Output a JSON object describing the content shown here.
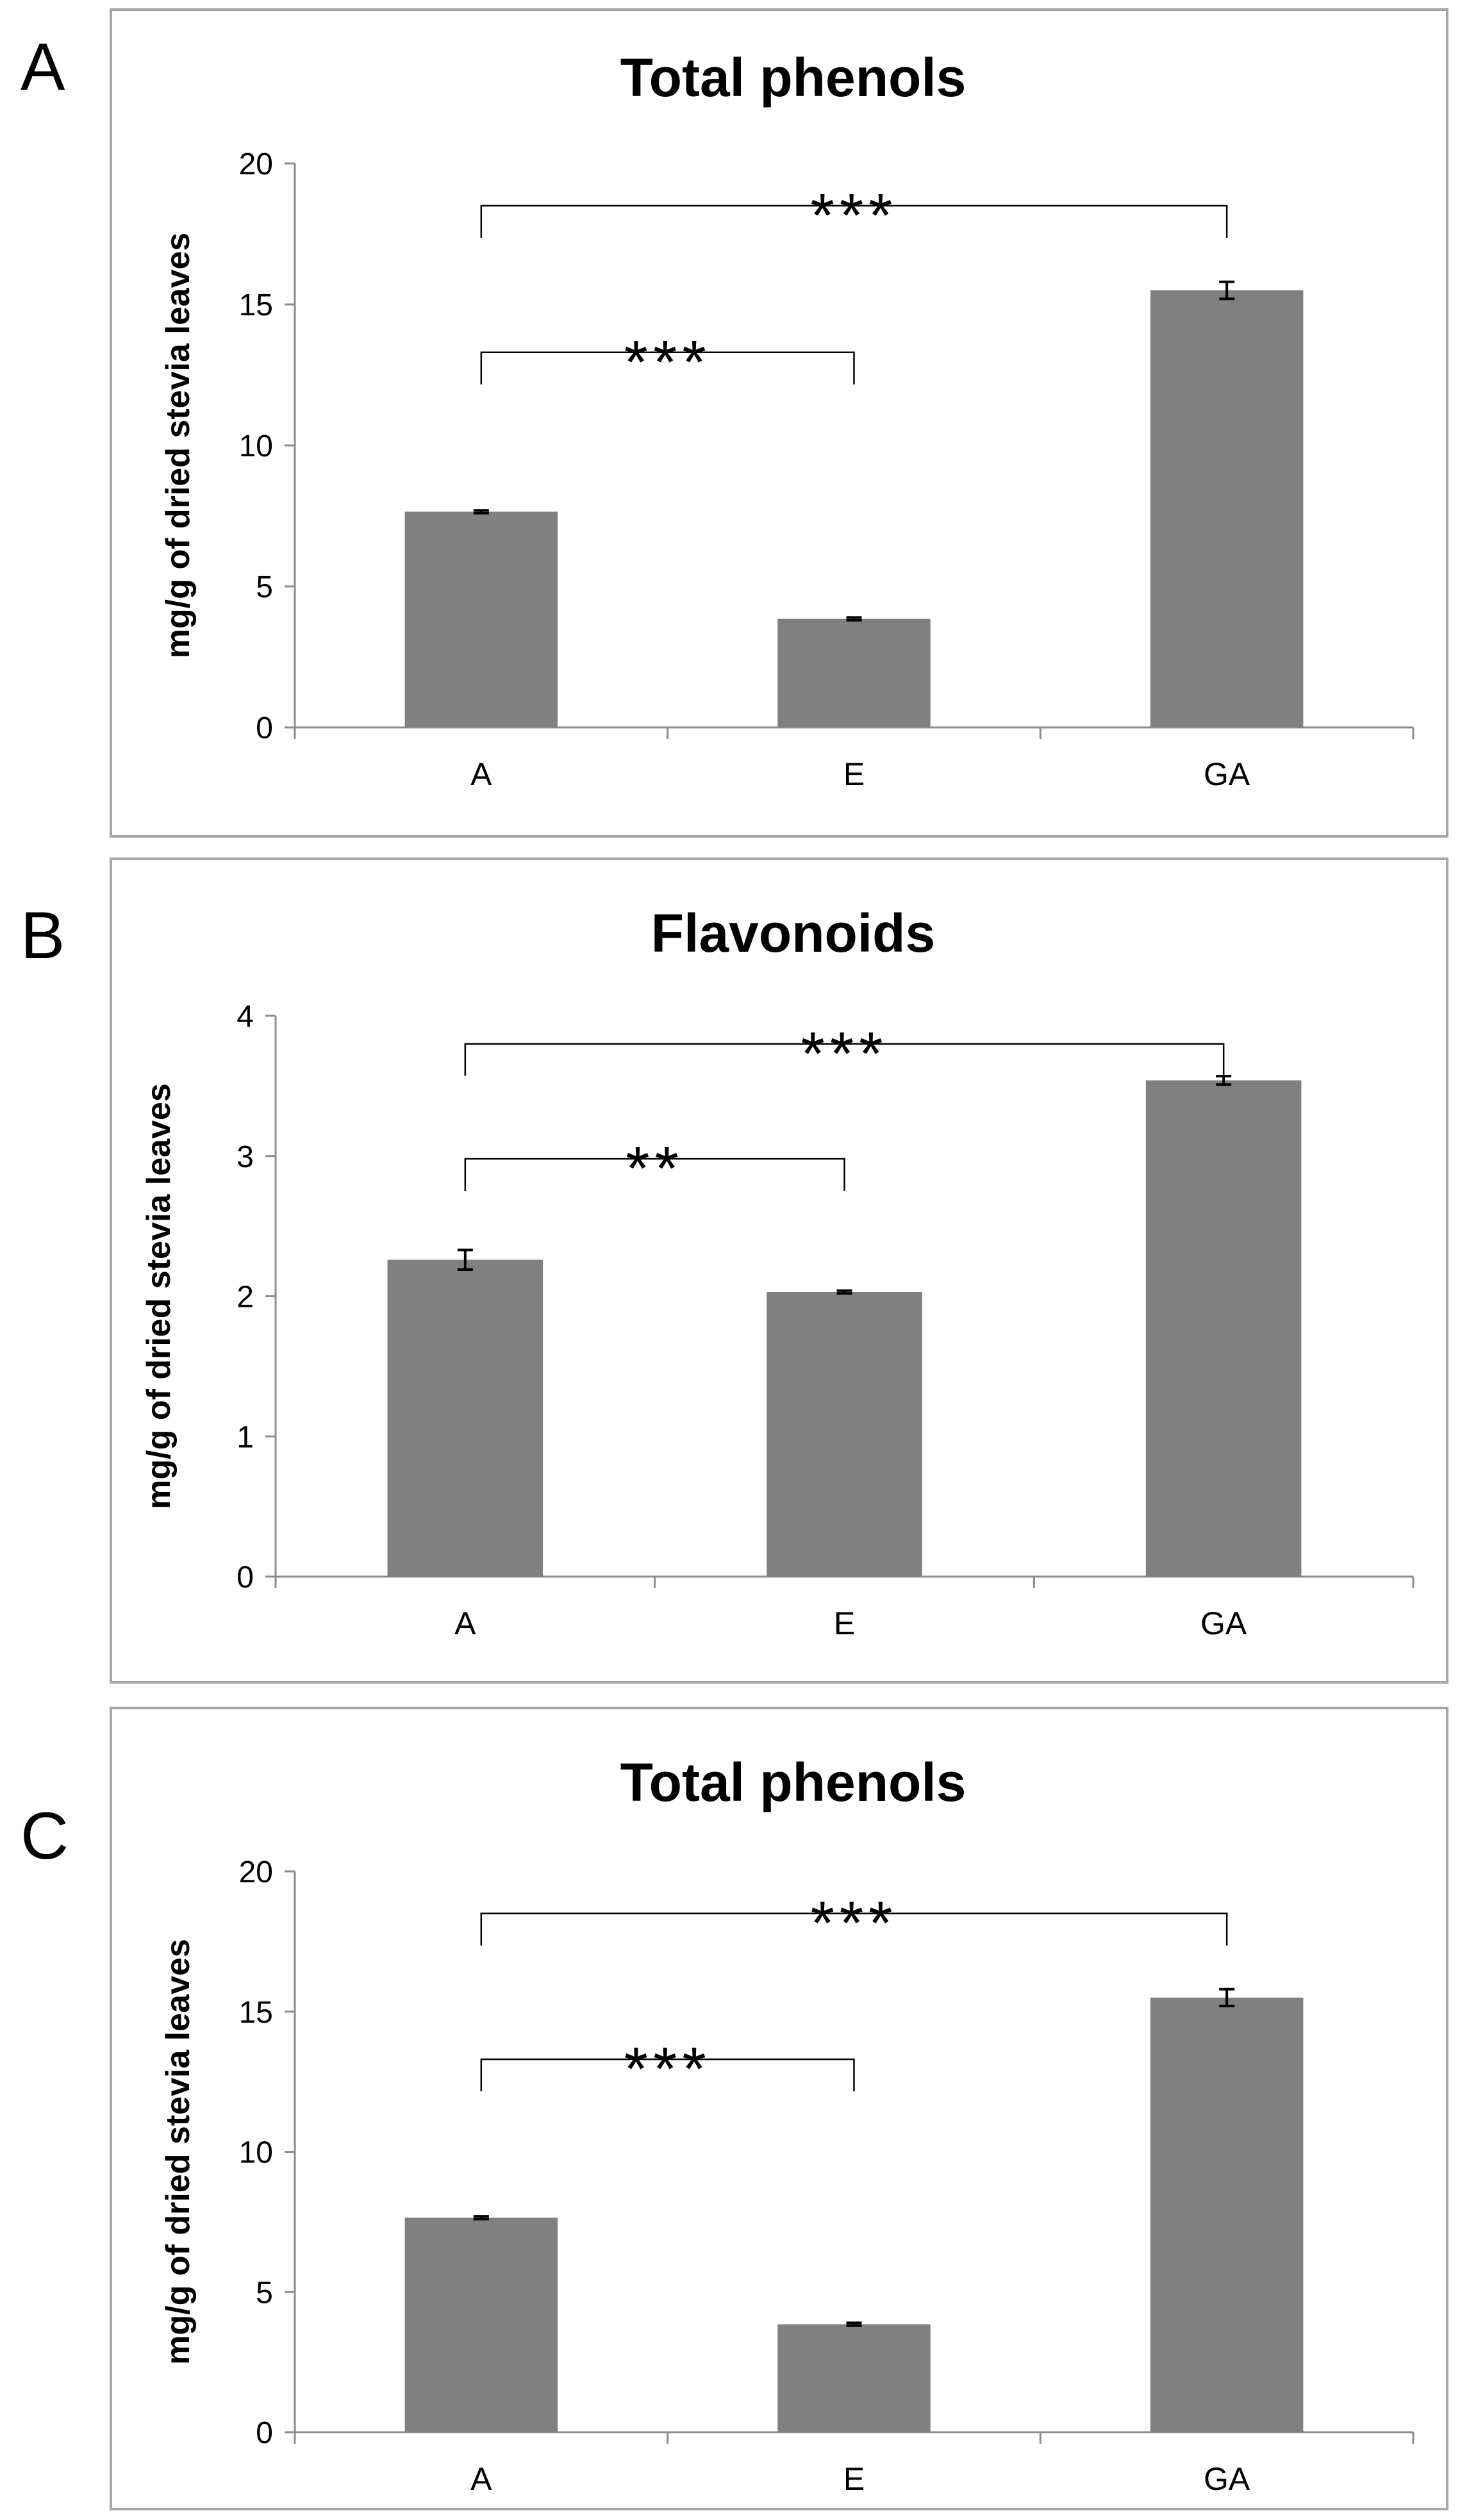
{
  "chart_data": [
    {
      "panel_label": "A",
      "type": "bar",
      "title": "Total phenols",
      "ylabel": "mg/g of dried stevia leaves",
      "xlabel": "",
      "categories": [
        "A",
        "E",
        "GA"
      ],
      "values": [
        7.65,
        3.85,
        15.5
      ],
      "errors": [
        0.05,
        0.05,
        0.3
      ],
      "ylim": [
        0,
        20
      ],
      "yticks": [
        0,
        5,
        10,
        15,
        20
      ],
      "grid": false,
      "bar_color": "#808080",
      "significance": [
        {
          "from": "A",
          "to": "GA",
          "label": "***",
          "y": 18.5
        },
        {
          "from": "A",
          "to": "E",
          "label": "***",
          "y": 13.3
        }
      ]
    },
    {
      "panel_label": "B",
      "type": "bar",
      "title": "Flavonoids",
      "ylabel": "mg/g of dried stevia leaves",
      "xlabel": "",
      "categories": [
        "A",
        "E",
        "GA"
      ],
      "values": [
        2.26,
        2.03,
        3.54
      ],
      "errors": [
        0.07,
        0.01,
        0.03
      ],
      "ylim": [
        0,
        4
      ],
      "yticks": [
        0,
        1,
        2,
        3,
        4
      ],
      "grid": false,
      "bar_color": "#808080",
      "significance": [
        {
          "from": "A",
          "to": "GA",
          "label": "***",
          "y": 3.8
        },
        {
          "from": "A",
          "to": "E",
          "label": "**",
          "y": 2.98
        }
      ]
    },
    {
      "panel_label": "C",
      "type": "bar",
      "title": "Total phenols",
      "ylabel": "mg/g of dried stevia leaves",
      "xlabel": "",
      "categories": [
        "A",
        "E",
        "GA"
      ],
      "values": [
        7.65,
        3.85,
        15.5
      ],
      "errors": [
        0.05,
        0.05,
        0.3
      ],
      "ylim": [
        0,
        20
      ],
      "yticks": [
        0,
        5,
        10,
        15,
        20
      ],
      "grid": false,
      "bar_color": "#808080",
      "significance": [
        {
          "from": "A",
          "to": "GA",
          "label": "***",
          "y": 18.5
        },
        {
          "from": "A",
          "to": "E",
          "label": "***",
          "y": 13.3
        }
      ]
    }
  ]
}
